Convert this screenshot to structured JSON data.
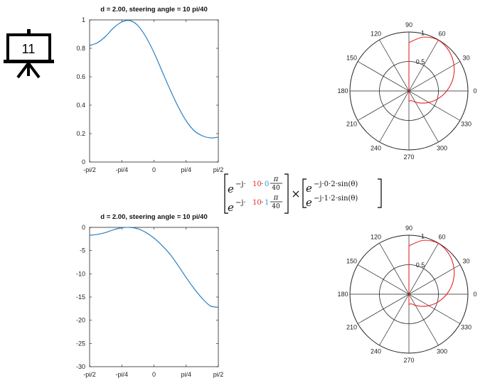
{
  "slide_badge": {
    "number": "11",
    "icon": "presentation-board-icon"
  },
  "colors": {
    "line": "#2b7fc2",
    "polar_line": "#e8262a",
    "emph": "#e8262a",
    "emph2": "#2a9ad8"
  },
  "formula": {
    "m1_r1": {
      "e": "e",
      "pre": "−j·",
      "k": "10",
      "dot": "·",
      "n": "0",
      "num": "π",
      "den": "40"
    },
    "m1_r2": {
      "e": "e",
      "pre": "−j·",
      "k": "10",
      "dot": "·",
      "n": "1",
      "num": "π",
      "den": "40"
    },
    "times": "×",
    "m2_r1": {
      "e": "e",
      "exp": "−j·0·2·sin(θ)"
    },
    "m2_r2": {
      "e": "e",
      "exp": "−j·1·2·sin(θ)"
    }
  },
  "chart_data": [
    {
      "type": "line",
      "title": "d = 2.00, steering angle  = 10 pi/40",
      "xlabel": "",
      "ylabel": "",
      "xlim": [
        -1.5708,
        1.5708
      ],
      "ylim": [
        0,
        1
      ],
      "xticks": [
        -1.5708,
        -0.7854,
        0,
        0.7854,
        1.5708
      ],
      "xtick_labels": [
        "-pi/2",
        "-pi/4",
        "0",
        "pi/4",
        "pi/2"
      ],
      "yticks": [
        0,
        0.2,
        0.4,
        0.6,
        0.8,
        1
      ],
      "ytick_labels": [
        "0",
        "0.2",
        "0.4",
        "0.6",
        "0.8",
        "1"
      ],
      "series": [
        {
          "x": [
            -1.5708,
            -1.3744,
            -1.1781,
            -0.9817,
            -0.7854,
            -0.589,
            -0.3927,
            -0.1963,
            0,
            0.1963,
            0.3927,
            0.589,
            0.7854,
            0.9817,
            1.1781,
            1.3744,
            1.5708
          ],
          "values": [
            0.82,
            0.84,
            0.885,
            0.945,
            0.985,
            0.995,
            0.96,
            0.88,
            0.77,
            0.64,
            0.51,
            0.39,
            0.29,
            0.22,
            0.185,
            0.17,
            0.175
          ]
        }
      ]
    },
    {
      "type": "line",
      "title": "d = 2.00, steering angle  = 10 pi/40",
      "xlabel": "",
      "ylabel": "",
      "xlim": [
        -1.5708,
        1.5708
      ],
      "ylim": [
        -30,
        0
      ],
      "xticks": [
        -1.5708,
        -0.7854,
        0,
        0.7854,
        1.5708
      ],
      "xtick_labels": [
        "-pi/2",
        "-pi/4",
        "0",
        "pi/4",
        "pi/2"
      ],
      "yticks": [
        -30,
        -25,
        -20,
        -15,
        -10,
        -5,
        0
      ],
      "ytick_labels": [
        "-30",
        "-25",
        "-20",
        "-15",
        "-10",
        "-5",
        "0"
      ],
      "series": [
        {
          "x": [
            -1.5708,
            -1.3744,
            -1.1781,
            -0.9817,
            -0.7854,
            -0.589,
            -0.3927,
            -0.1963,
            0,
            0.1963,
            0.3927,
            0.589,
            0.7854,
            0.9817,
            1.1781,
            1.3744,
            1.5708
          ],
          "values": [
            -1.7,
            -1.5,
            -1.1,
            -0.5,
            -0.1,
            0,
            -0.3,
            -1.1,
            -2.3,
            -3.9,
            -5.8,
            -8.2,
            -10.8,
            -13.2,
            -15.3,
            -16.9,
            -17.2
          ]
        }
      ]
    },
    {
      "type": "polar",
      "rlim": [
        0,
        1
      ],
      "r_tick_labels": [
        "0.5",
        "1"
      ],
      "angle_tick_labels": [
        "0",
        "30",
        "60",
        "90",
        "120",
        "150",
        "180",
        "210",
        "240",
        "270",
        "300",
        "330"
      ],
      "series": [
        {
          "theta_deg": [
            270,
            285,
            300,
            315,
            330,
            345,
            0,
            15,
            30,
            45,
            60,
            75,
            90
          ],
          "r": [
            0.175,
            0.17,
            0.22,
            0.29,
            0.39,
            0.51,
            0.64,
            0.77,
            0.88,
            0.96,
            0.995,
            0.945,
            0.82
          ]
        }
      ]
    },
    {
      "type": "polar",
      "rlim": [
        0,
        1
      ],
      "r_tick_labels": [
        "0.5",
        "1"
      ],
      "angle_tick_labels": [
        "0",
        "30",
        "60",
        "90",
        "120",
        "150",
        "180",
        "210",
        "240",
        "270",
        "300",
        "330"
      ],
      "series": [
        {
          "theta_deg": [
            270,
            285,
            300,
            315,
            330,
            345,
            0,
            15,
            30,
            45,
            60,
            75,
            90
          ],
          "r": [
            0.175,
            0.17,
            0.22,
            0.29,
            0.39,
            0.51,
            0.64,
            0.77,
            0.88,
            0.96,
            0.995,
            0.945,
            0.82
          ]
        }
      ]
    }
  ]
}
